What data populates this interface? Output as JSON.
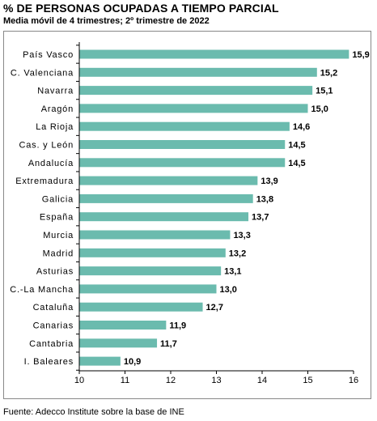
{
  "title": "% DE PERSONAS OCUPADAS A TIEMPO PARCIAL",
  "subtitle": "Media móvil de 4 trimestres; 2º trimestre de 2022",
  "source": "Fuente: Adecco Institute sobre la base de INE",
  "colors": {
    "bar": "#6bbbae",
    "axis": "#000000",
    "frame": "#888888"
  },
  "chart_data": {
    "type": "bar",
    "orientation": "horizontal",
    "categories": [
      "País Vasco",
      "C. Valenciana",
      "Navarra",
      "Aragón",
      "La Rioja",
      "Cas. y León",
      "Andalucía",
      "Extremadura",
      "Galicia",
      "España",
      "Murcia",
      "Madrid",
      "Asturias",
      "C.-La Mancha",
      "Cataluña",
      "Canarias",
      "Cantabria",
      "I. Baleares"
    ],
    "values": [
      15.9,
      15.2,
      15.1,
      15.0,
      14.6,
      14.5,
      14.5,
      13.9,
      13.8,
      13.7,
      13.3,
      13.2,
      13.1,
      13.0,
      12.7,
      11.9,
      11.7,
      10.9
    ],
    "value_labels": [
      "15,9",
      "15,2",
      "15,1",
      "15,0",
      "14,6",
      "14,5",
      "14,5",
      "13,9",
      "13,8",
      "13,7",
      "13,3",
      "13,2",
      "13,1",
      "13,0",
      "12,7",
      "11,9",
      "11,7",
      "10,9"
    ],
    "xlim": [
      10,
      16
    ],
    "xticks": [
      "10",
      "11",
      "12",
      "13",
      "14",
      "15",
      "16"
    ],
    "grid": false,
    "legend": "none"
  }
}
